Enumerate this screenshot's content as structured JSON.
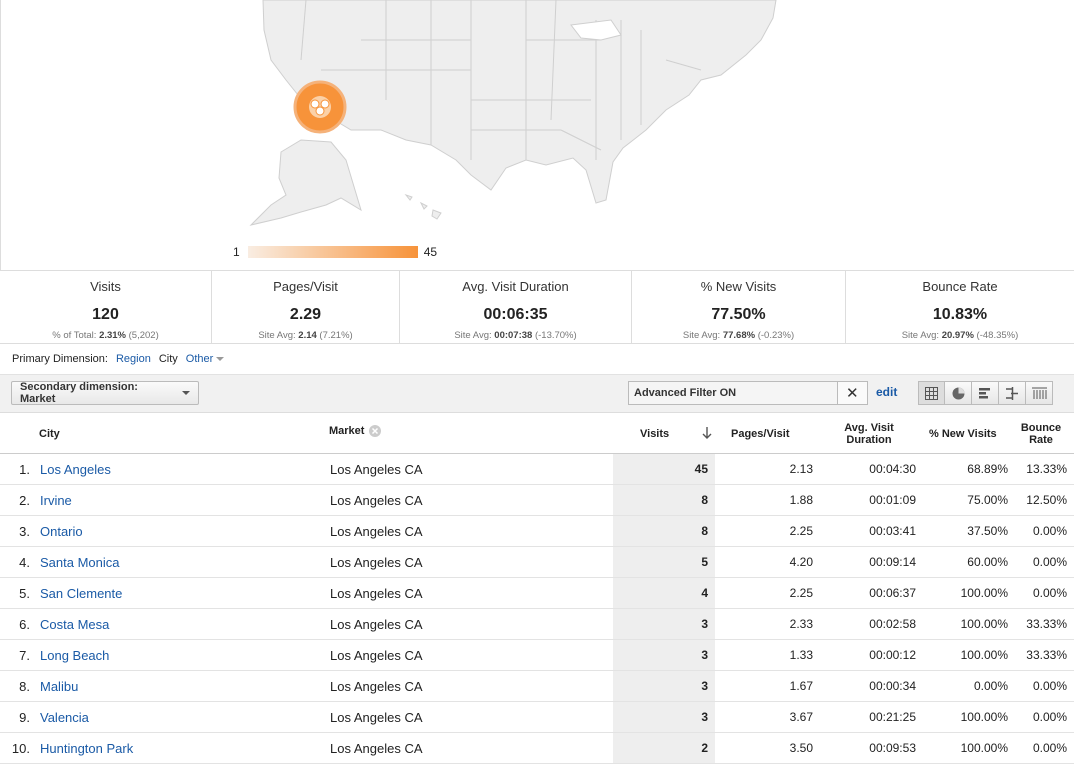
{
  "map": {
    "legend_min": "1",
    "legend_max": "45",
    "scale_colors": [
      "#f9ede2",
      "#f7933a"
    ],
    "bubble_color": "#f7933a"
  },
  "metrics": [
    {
      "label": "Visits",
      "value": "120",
      "sub_prefix": "% of Total: ",
      "sub_bold": "2.31%",
      "sub_suffix": " (5,202)"
    },
    {
      "label": "Pages/Visit",
      "value": "2.29",
      "sub_prefix": "Site Avg: ",
      "sub_bold": "2.14",
      "sub_suffix": " (7.21%)"
    },
    {
      "label": "Avg. Visit Duration",
      "value": "00:06:35",
      "sub_prefix": "Site Avg: ",
      "sub_bold": "00:07:38",
      "sub_suffix": " (-13.70%)"
    },
    {
      "label": "% New Visits",
      "value": "77.50%",
      "sub_prefix": "Site Avg: ",
      "sub_bold": "77.68%",
      "sub_suffix": " (-0.23%)"
    },
    {
      "label": "Bounce Rate",
      "value": "10.83%",
      "sub_prefix": "Site Avg: ",
      "sub_bold": "20.97%",
      "sub_suffix": " (-48.35%)"
    }
  ],
  "primary_dimension": {
    "label": "Primary Dimension:",
    "region": "Region",
    "city": "City",
    "other": "Other"
  },
  "toolbar": {
    "secondary_dimension": "Secondary dimension: Market",
    "filter_value": "Advanced Filter ON",
    "clear": "✕",
    "edit": "edit"
  },
  "table": {
    "headers": {
      "city": "City",
      "market": "Market",
      "visits": "Visits",
      "ppv": "Pages/Visit",
      "duration_1": "Avg. Visit",
      "duration_2": "Duration",
      "new_visits": "% New Visits",
      "bounce_1": "Bounce",
      "bounce_2": "Rate"
    },
    "rows": [
      {
        "idx": "1.",
        "city": "Los Angeles",
        "market": "Los Angeles CA",
        "visits": "45",
        "ppv": "2.13",
        "duration": "00:04:30",
        "new_visits": "68.89%",
        "bounce": "13.33%"
      },
      {
        "idx": "2.",
        "city": "Irvine",
        "market": "Los Angeles CA",
        "visits": "8",
        "ppv": "1.88",
        "duration": "00:01:09",
        "new_visits": "75.00%",
        "bounce": "12.50%"
      },
      {
        "idx": "3.",
        "city": "Ontario",
        "market": "Los Angeles CA",
        "visits": "8",
        "ppv": "2.25",
        "duration": "00:03:41",
        "new_visits": "37.50%",
        "bounce": "0.00%"
      },
      {
        "idx": "4.",
        "city": "Santa Monica",
        "market": "Los Angeles CA",
        "visits": "5",
        "ppv": "4.20",
        "duration": "00:09:14",
        "new_visits": "60.00%",
        "bounce": "0.00%"
      },
      {
        "idx": "5.",
        "city": "San Clemente",
        "market": "Los Angeles CA",
        "visits": "4",
        "ppv": "2.25",
        "duration": "00:06:37",
        "new_visits": "100.00%",
        "bounce": "0.00%"
      },
      {
        "idx": "6.",
        "city": "Costa Mesa",
        "market": "Los Angeles CA",
        "visits": "3",
        "ppv": "2.33",
        "duration": "00:02:58",
        "new_visits": "100.00%",
        "bounce": "33.33%"
      },
      {
        "idx": "7.",
        "city": "Long Beach",
        "market": "Los Angeles CA",
        "visits": "3",
        "ppv": "1.33",
        "duration": "00:00:12",
        "new_visits": "100.00%",
        "bounce": "33.33%"
      },
      {
        "idx": "8.",
        "city": "Malibu",
        "market": "Los Angeles CA",
        "visits": "3",
        "ppv": "1.67",
        "duration": "00:00:34",
        "new_visits": "0.00%",
        "bounce": "0.00%"
      },
      {
        "idx": "9.",
        "city": "Valencia",
        "market": "Los Angeles CA",
        "visits": "3",
        "ppv": "3.67",
        "duration": "00:21:25",
        "new_visits": "100.00%",
        "bounce": "0.00%"
      },
      {
        "idx": "10.",
        "city": "Huntington Park",
        "market": "Los Angeles CA",
        "visits": "2",
        "ppv": "3.50",
        "duration": "00:09:53",
        "new_visits": "100.00%",
        "bounce": "0.00%"
      }
    ]
  }
}
